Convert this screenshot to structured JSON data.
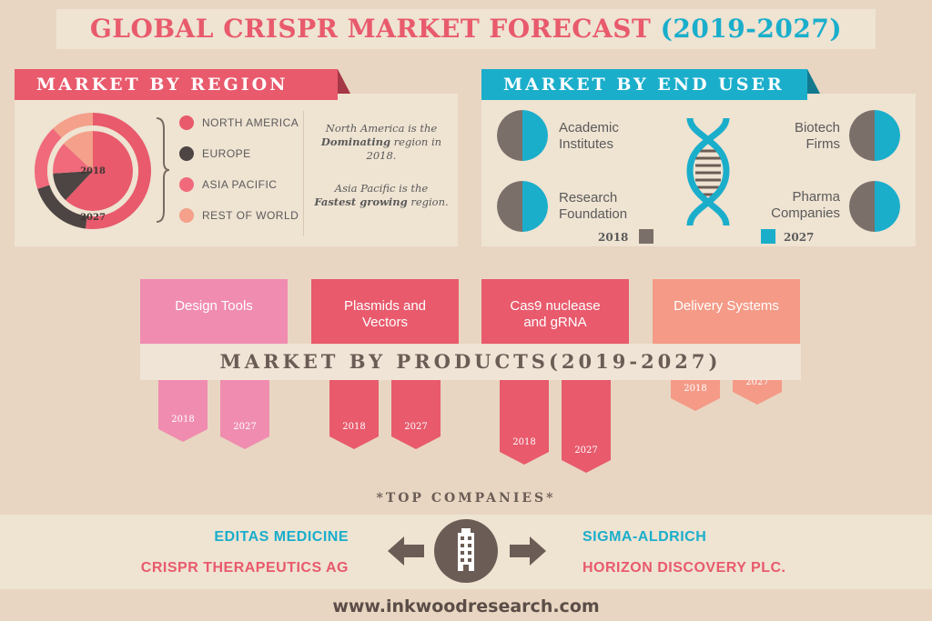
{
  "title": {
    "main": "GLOBAL CRISPR MARKET FORECAST",
    "years": "(2019-2027)"
  },
  "colors": {
    "pink": "#e85a6c",
    "teal": "#1aaecb",
    "dark": "#6b5c55",
    "light_pink": "#f08cb0",
    "salmon": "#f49a87"
  },
  "region": {
    "banner": "MARKET BY REGION",
    "legend": [
      {
        "label": "NORTH AMERICA",
        "color": "#e85a6c"
      },
      {
        "label": "EUROPE",
        "color": "#4d4543"
      },
      {
        "label": "ASIA PACIFIC",
        "color": "#f06a7b"
      },
      {
        "label": "REST OF WORLD",
        "color": "#f4a08a"
      }
    ],
    "inner_year": "2018",
    "outer_year": "2027",
    "note1": {
      "pre": "North America is the ",
      "bold": "Dominating",
      "post": " region in 2018."
    },
    "note2": {
      "pre": "Asia Pacific is the ",
      "bold": "Fastest growing",
      "post": " region."
    }
  },
  "end_user": {
    "banner": "MARKET BY END USER",
    "items": [
      "Academic Institutes",
      "Research Foundation",
      "Biotech Firms",
      "Pharma Companies"
    ],
    "legend_2018": "2018",
    "legend_2027": "2027"
  },
  "chart_data": {
    "type": "donut",
    "title": "MARKET BY REGION",
    "rings": [
      {
        "name": "2018",
        "values": [
          62,
          12,
          13,
          13
        ]
      },
      {
        "name": "2027",
        "values": [
          52,
          18,
          18,
          12
        ]
      }
    ],
    "categories": [
      "NORTH AMERICA",
      "EUROPE",
      "ASIA PACIFIC",
      "REST OF WORLD"
    ]
  },
  "products": {
    "banner": "MARKET BY PRODUCTS(2019-2027)",
    "items": [
      {
        "label": "Design Tools",
        "color": "#f08cb0",
        "y2018": "2018",
        "y2027": "2027"
      },
      {
        "label": "Plasmids and Vectors",
        "color": "#e85a6c",
        "y2018": "2018",
        "y2027": "2027"
      },
      {
        "label": "Cas9 nuclease and gRNA",
        "color": "#e85a6c",
        "y2018": "2018",
        "y2027": "2027"
      },
      {
        "label": "Delivery Systems",
        "color": "#f49a87",
        "y2018": "2018",
        "y2027": "2027"
      }
    ]
  },
  "companies": {
    "title": "*TOP COMPANIES*",
    "left": [
      "EDITAS MEDICINE",
      "CRISPR THERAPEUTICS AG"
    ],
    "right": [
      "SIGMA-ALDRICH",
      "HORIZON DISCOVERY PLC."
    ]
  },
  "url": "www.inkwoodresearch.com"
}
